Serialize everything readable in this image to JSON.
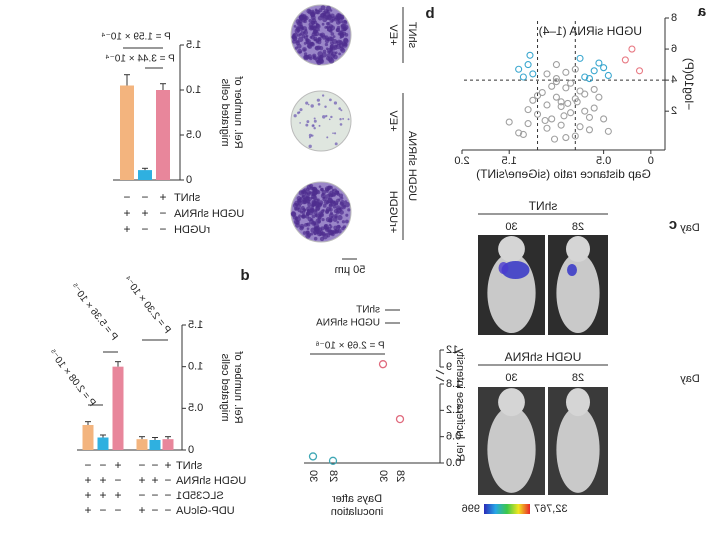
{
  "chart_data": [
    {
      "type": "scatter",
      "panel": "a",
      "title": "UGDH siRNA (1–4)",
      "title_color": "#e8869b",
      "xlabel": "Gap distance ratio (siGene/siNT)",
      "ylabel": "−log10(P)",
      "xlim": [
        -0.15,
        2.0
      ],
      "xticks": [
        0,
        0.5,
        1.5,
        {
          "value": 2,
          "label": "2.0"
        }
      ],
      "ylim": [
        -0.5,
        8
      ],
      "yticks": [
        2,
        4,
        6,
        8
      ],
      "hlines": [
        4
      ],
      "vlines": [
        0.8,
        1.2
      ],
      "series": [
        {
          "color": "#a0a0a0",
          "x": [
            0.5,
            0.6,
            0.7,
            0.8,
            0.9,
            1.0,
            1.1,
            1.2,
            1.3,
            0.75,
            0.85,
            0.95,
            1.05,
            1.15,
            0.65,
            0.55,
            1.25,
            1.4,
            0.9,
            1.0,
            0.8,
            1.1,
            0.7,
            0.95,
            1.05,
            0.85,
            0.6,
            1.2,
            1.3,
            0.45,
            1.5,
            0.9,
            1.0,
            0.75,
            1.1,
            0.8,
            1.35,
            0.65,
            0.95,
            1.0,
            0.88,
            1.02,
            0.92,
            0.78,
            1.12
          ],
          "values": [
            1.5,
            2.2,
            3.1,
            2.8,
            3.5,
            2.9,
            2.4,
            1.8,
            1.2,
            1.0,
            3.8,
            2.6,
            1.5,
            3.2,
            0.8,
            2.9,
            2.7,
            0.6,
            4.5,
            4.1,
            0.4,
            0.9,
            2.0,
            1.1,
            3.6,
            1.9,
            3.4,
            3.0,
            2.1,
            0.7,
            1.3,
            0.3,
            5.0,
            3.3,
            4.4,
            4.7,
            0.5,
            1.6,
            2.3,
            3.9,
            2.5,
            0.2,
            1.7,
            2.6,
            1.4
          ]
        },
        {
          "color": "#3aa7cf",
          "x": [
            0.45,
            0.55,
            0.6,
            0.7,
            0.75,
            0.5,
            1.25,
            1.3,
            1.35,
            1.4,
            1.28,
            0.65
          ],
          "values": [
            4.3,
            5.1,
            4.6,
            4.2,
            5.4,
            4.8,
            4.4,
            5.0,
            4.2,
            4.7,
            5.6,
            4.1
          ]
        },
        {
          "color": "#e87a84",
          "x": [
            0.2,
            0.27,
            0.12
          ],
          "values": [
            6.0,
            5.3,
            4.6
          ]
        }
      ]
    },
    {
      "type": "bar",
      "ylabel": [
        "Rel. number of",
        "migrated cells"
      ],
      "ylim": [
        0,
        1.5
      ],
      "yticks": [
        0,
        0.5,
        {
          "value": 1,
          "label": "1.0"
        },
        1.5
      ],
      "values": [
        1.0,
        0.11,
        1.05
      ],
      "errors": [
        0.07,
        0.02,
        0.12
      ],
      "colors": [
        "#e8869b",
        "#2fb0e0",
        "#f3b47e"
      ],
      "conditions": [
        {
          "name": "shNT",
          "signs": [
            "+",
            "−",
            "−"
          ]
        },
        {
          "name": "UGDH shRNA",
          "signs": [
            "−",
            "+",
            "+"
          ]
        },
        {
          "name": "rUGDH",
          "signs": [
            "−",
            "−",
            "+"
          ]
        }
      ],
      "annotations": [
        "P = 1.59 × 10⁻⁴",
        "P = 3.44 × 10⁻⁴"
      ]
    },
    {
      "type": "dot",
      "ylabel": "Rel. luciferase intensity",
      "xlabel": [
        "Days after",
        "inoculation"
      ],
      "categories": [
        "28",
        "30"
      ],
      "ylim": [
        0,
        12
      ],
      "ybreak": [
        1.8,
        9
      ],
      "yticks": [
        {
          "value": 0,
          "label": "0.0"
        },
        0.6,
        1.2,
        1.8,
        9,
        12
      ],
      "series": [
        {
          "name": "shNT",
          "color": "#e06a7d",
          "values": [
            1.0,
            9.5
          ]
        },
        {
          "name": "UGDH shRNA",
          "color": "#3fa7b5",
          "values": [
            0.05,
            0.15
          ]
        }
      ],
      "annotations": [
        "P = 2.69 × 10⁻⁶"
      ]
    },
    {
      "type": "bar",
      "panel": "d",
      "ylabel": [
        "Rel. number of",
        "migrated cells"
      ],
      "ylim": [
        0,
        1.5
      ],
      "yticks": [
        0,
        0.5,
        {
          "value": 1,
          "label": "1.0"
        },
        1.5
      ],
      "values": [
        0.13,
        0.12,
        0.13,
        1.0,
        0.15,
        0.3
      ],
      "errors": [
        0.03,
        0.03,
        0.03,
        0.06,
        0.03,
        0.04
      ],
      "colors": [
        "#e8869b",
        "#2fb0e0",
        "#f3b47e",
        "#e8869b",
        "#2fb0e0",
        "#f3b47e"
      ],
      "conditions": [
        {
          "name": "shNT",
          "signs": [
            "+",
            "−",
            "−",
            "+",
            "−",
            "−"
          ]
        },
        {
          "name": "UGDH shRNA",
          "signs": [
            "−",
            "+",
            "+",
            "−",
            "+",
            "+"
          ]
        },
        {
          "name": "SLC35D1",
          "signs": [
            "−",
            "−",
            "−",
            "+",
            "+",
            "+"
          ]
        },
        {
          "name": "UDP-GlcUA",
          "signs": [
            "−",
            "−",
            "+",
            "−",
            "−",
            "+"
          ]
        }
      ],
      "annotations": [
        "P = 2.30 × 10⁻⁴",
        "P = 5.36 × 10⁻⁵",
        "P = 2.08 × 10⁻⁵"
      ]
    }
  ],
  "colony_panel": {
    "panel": "b",
    "groups": [
      {
        "label": "shNT",
        "rows": [
          "+EV"
        ]
      },
      {
        "label": "UGDH shRNA",
        "rows": [
          "+EV",
          "+rUGDH"
        ]
      }
    ],
    "scale_bar": "50 µm"
  },
  "imaging_panel": {
    "panel": "c",
    "day_label": "Day",
    "groups": [
      {
        "title": "shNT",
        "days": [
          "28",
          "30"
        ]
      },
      {
        "title": "UGDH shRNA",
        "days": [
          "28",
          "30"
        ]
      }
    ],
    "colorbar_labels": [
      "32,767",
      "996"
    ]
  }
}
